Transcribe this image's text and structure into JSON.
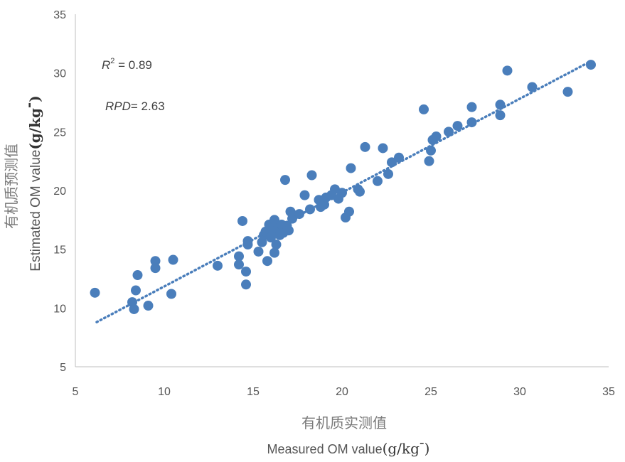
{
  "chart_data": {
    "type": "scatter",
    "xlim": [
      5,
      35
    ],
    "ylim": [
      5,
      35
    ],
    "xticks": [
      "5",
      "10",
      "15",
      "20",
      "25",
      "30",
      "35"
    ],
    "yticks": [
      "5",
      "10",
      "15",
      "20",
      "25",
      "30",
      "35"
    ],
    "grid": false,
    "xlabel_cn": "有机质实测值",
    "xlabel_en": "Measured OM value",
    "xlabel_unit": "(g/kg",
    "xlabel_unit_sup": "-",
    "xlabel_unit_close": ")",
    "ylabel_cn": "有机质预测值",
    "ylabel_en": "Estimated OM value",
    "ylabel_unit": "(g/kg",
    "ylabel_unit_sup": "-",
    "ylabel_unit_close": ")",
    "annotations": {
      "r2_symbol": "R",
      "r2_sup": "2",
      "r2_value": " = 0.89",
      "rpd_symbol": "RPD",
      "rpd_value": "= 2.63"
    },
    "point_color": "#4a7ebb",
    "trend_color": "#4a7ebb",
    "trendline": {
      "x": [
        6.2,
        34.0
      ],
      "y": [
        8.8,
        31.0
      ]
    },
    "points": [
      [
        6.1,
        11.3
      ],
      [
        8.2,
        10.5
      ],
      [
        8.3,
        9.9
      ],
      [
        8.4,
        11.5
      ],
      [
        8.5,
        12.8
      ],
      [
        9.1,
        10.2
      ],
      [
        9.5,
        14.0
      ],
      [
        9.5,
        13.4
      ],
      [
        10.4,
        11.2
      ],
      [
        10.5,
        14.1
      ],
      [
        13.0,
        13.6
      ],
      [
        14.2,
        14.4
      ],
      [
        14.2,
        13.7
      ],
      [
        14.4,
        17.4
      ],
      [
        14.6,
        13.1
      ],
      [
        14.6,
        12.0
      ],
      [
        14.7,
        15.4
      ],
      [
        14.7,
        15.7
      ],
      [
        15.3,
        14.8
      ],
      [
        15.5,
        15.6
      ],
      [
        15.6,
        16.2
      ],
      [
        15.7,
        16.5
      ],
      [
        15.8,
        14.0
      ],
      [
        15.9,
        17.1
      ],
      [
        16.0,
        16.0
      ],
      [
        16.1,
        16.6
      ],
      [
        16.2,
        17.5
      ],
      [
        16.2,
        14.7
      ],
      [
        16.3,
        17.0
      ],
      [
        16.3,
        15.4
      ],
      [
        16.4,
        16.8
      ],
      [
        16.5,
        16.2
      ],
      [
        16.6,
        17.1
      ],
      [
        16.7,
        16.4
      ],
      [
        16.8,
        20.9
      ],
      [
        16.9,
        17.0
      ],
      [
        17.0,
        16.6
      ],
      [
        17.1,
        18.2
      ],
      [
        17.2,
        17.6
      ],
      [
        17.3,
        17.9
      ],
      [
        17.6,
        18.0
      ],
      [
        17.9,
        19.6
      ],
      [
        18.2,
        18.4
      ],
      [
        18.3,
        21.3
      ],
      [
        18.7,
        19.2
      ],
      [
        18.8,
        18.6
      ],
      [
        19.0,
        18.8
      ],
      [
        19.1,
        19.4
      ],
      [
        19.4,
        19.6
      ],
      [
        19.6,
        20.1
      ],
      [
        19.8,
        19.3
      ],
      [
        20.0,
        19.8
      ],
      [
        20.2,
        17.7
      ],
      [
        20.4,
        18.2
      ],
      [
        20.5,
        21.9
      ],
      [
        20.9,
        20.1
      ],
      [
        21.0,
        19.9
      ],
      [
        21.3,
        23.7
      ],
      [
        22.0,
        20.8
      ],
      [
        22.3,
        23.6
      ],
      [
        22.6,
        21.4
      ],
      [
        22.8,
        22.4
      ],
      [
        23.2,
        22.8
      ],
      [
        24.6,
        26.9
      ],
      [
        24.9,
        22.5
      ],
      [
        25.0,
        23.4
      ],
      [
        25.1,
        24.3
      ],
      [
        25.3,
        24.6
      ],
      [
        26.0,
        25.0
      ],
      [
        26.5,
        25.5
      ],
      [
        27.3,
        27.1
      ],
      [
        27.3,
        25.8
      ],
      [
        28.9,
        27.3
      ],
      [
        28.9,
        26.4
      ],
      [
        29.3,
        30.2
      ],
      [
        30.7,
        28.8
      ],
      [
        32.7,
        28.4
      ],
      [
        34.0,
        30.7
      ]
    ]
  }
}
